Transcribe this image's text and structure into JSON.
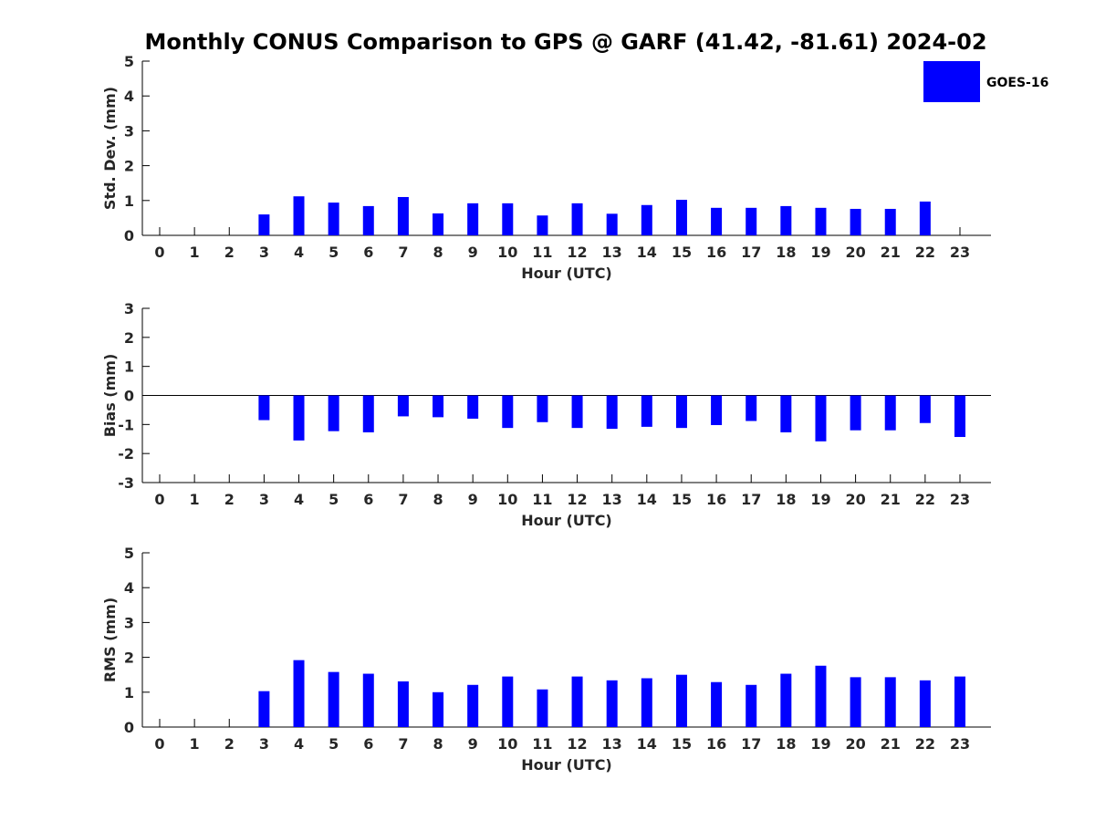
{
  "title": "Monthly CONUS Comparison to GPS @ GARF (41.42, -81.61) 2024-02",
  "legend": {
    "label": "GOES-16",
    "color": "#0000ff"
  },
  "chart_data": [
    {
      "type": "bar",
      "xlabel": "Hour (UTC)",
      "ylabel": "Std. Dev. (mm)",
      "ylim": [
        0,
        5
      ],
      "yticks": [
        0,
        1,
        2,
        3,
        4,
        5
      ],
      "categories": [
        "0",
        "1",
        "2",
        "3",
        "4",
        "5",
        "6",
        "7",
        "8",
        "9",
        "10",
        "11",
        "12",
        "13",
        "14",
        "15",
        "16",
        "17",
        "18",
        "19",
        "20",
        "21",
        "22",
        "23"
      ],
      "series": [
        {
          "name": "GOES-16",
          "values": [
            null,
            null,
            null,
            0.6,
            1.12,
            0.94,
            0.84,
            1.1,
            0.63,
            0.92,
            0.92,
            0.57,
            0.92,
            0.62,
            0.87,
            1.02,
            0.79,
            0.79,
            0.84,
            0.79,
            0.76,
            0.76,
            0.97,
            null
          ]
        }
      ],
      "grid": false,
      "legend_position": "top-right"
    },
    {
      "type": "bar",
      "xlabel": "Hour (UTC)",
      "ylabel": "Bias (mm)",
      "ylim": [
        -3,
        3
      ],
      "yticks": [
        -3,
        -2,
        -1,
        0,
        1,
        2,
        3
      ],
      "categories": [
        "0",
        "1",
        "2",
        "3",
        "4",
        "5",
        "6",
        "7",
        "8",
        "9",
        "10",
        "11",
        "12",
        "13",
        "14",
        "15",
        "16",
        "17",
        "18",
        "19",
        "20",
        "21",
        "22",
        "23"
      ],
      "series": [
        {
          "name": "GOES-16",
          "values": [
            null,
            null,
            null,
            -0.85,
            -1.55,
            -1.23,
            -1.27,
            -0.72,
            -0.75,
            -0.8,
            -1.12,
            -0.92,
            -1.12,
            -1.15,
            -1.08,
            -1.12,
            -1.02,
            -0.88,
            -1.27,
            -1.58,
            -1.2,
            -1.2,
            -0.95,
            -1.43
          ]
        }
      ],
      "zero_line": true,
      "grid": false
    },
    {
      "type": "bar",
      "xlabel": "Hour (UTC)",
      "ylabel": "RMS (mm)",
      "ylim": [
        0,
        5
      ],
      "yticks": [
        0,
        1,
        2,
        3,
        4,
        5
      ],
      "categories": [
        "0",
        "1",
        "2",
        "3",
        "4",
        "5",
        "6",
        "7",
        "8",
        "9",
        "10",
        "11",
        "12",
        "13",
        "14",
        "15",
        "16",
        "17",
        "18",
        "19",
        "20",
        "21",
        "22",
        "23"
      ],
      "series": [
        {
          "name": "GOES-16",
          "values": [
            null,
            null,
            null,
            1.03,
            1.92,
            1.58,
            1.53,
            1.31,
            1.0,
            1.21,
            1.45,
            1.08,
            1.45,
            1.34,
            1.4,
            1.5,
            1.29,
            1.21,
            1.53,
            1.76,
            1.43,
            1.43,
            1.34,
            1.45
          ]
        }
      ],
      "grid": false
    }
  ]
}
